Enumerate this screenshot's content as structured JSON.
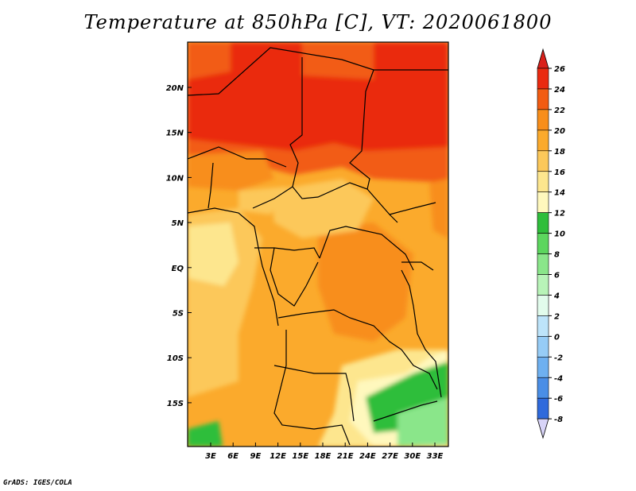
{
  "title": "Temperature at 850hPa [C], VT: 2020061800",
  "footer": "GrADS: IGES/COLA",
  "map": {
    "lon_ticks": [
      "3E",
      "6E",
      "9E",
      "12E",
      "15E",
      "18E",
      "21E",
      "24E",
      "27E",
      "30E",
      "33E"
    ],
    "lat_ticks": [
      "20N",
      "15N",
      "10N",
      "5N",
      "EQ",
      "5S",
      "10S",
      "15S"
    ]
  },
  "colorbar": {
    "labels": [
      "26",
      "24",
      "22",
      "20",
      "18",
      "16",
      "14",
      "12",
      "10",
      "8",
      "6",
      "4",
      "2",
      "0",
      "-2",
      "-4",
      "-6",
      "-8"
    ],
    "colors": [
      "#ea2a10",
      "#f25c12",
      "#f88e1a",
      "#fbaa2c",
      "#fcc85a",
      "#fde68e",
      "#fff8bd",
      "#2fbe3b",
      "#5cd65e",
      "#8ae68a",
      "#b8f4b8",
      "#e2fcec",
      "#bde4fa",
      "#96ccf6",
      "#6eb0f0",
      "#4a8ee6",
      "#2f6adc",
      "#1c48c8",
      "#0f2aa0",
      "#0a1268"
    ],
    "top_color": "#d9201a",
    "bottom_color": "#d8d4f8"
  }
}
